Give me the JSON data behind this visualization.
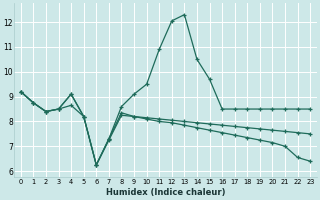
{
  "xlabel": "Humidex (Indice chaleur)",
  "bg_color": "#cde8e8",
  "line_color": "#1e6b5a",
  "grid_color": "#b8d8d8",
  "xlim": [
    -0.5,
    23.5
  ],
  "ylim": [
    5.75,
    12.75
  ],
  "xticks": [
    0,
    1,
    2,
    3,
    4,
    5,
    6,
    7,
    8,
    9,
    10,
    11,
    12,
    13,
    14,
    15,
    16,
    17,
    18,
    19,
    20,
    21,
    22,
    23
  ],
  "yticks": [
    6,
    7,
    8,
    9,
    10,
    11,
    12
  ],
  "line1_x": [
    0,
    1,
    2,
    3,
    4,
    5,
    6,
    7,
    8,
    9,
    10,
    11,
    12,
    13,
    14,
    15,
    16,
    17,
    18,
    19,
    20,
    21,
    22,
    23
  ],
  "line1_y": [
    9.2,
    8.75,
    8.4,
    8.5,
    9.1,
    8.2,
    6.25,
    7.3,
    8.6,
    9.1,
    9.5,
    10.9,
    12.05,
    12.3,
    10.5,
    9.7,
    8.5,
    8.5,
    8.5,
    8.5,
    8.5,
    8.5,
    8.5,
    8.5
  ],
  "line2_x": [
    0,
    1,
    2,
    3,
    4,
    5,
    6,
    7,
    8,
    9,
    10,
    11,
    12,
    13,
    14,
    15,
    16,
    17,
    18,
    19,
    20,
    21,
    22,
    23
  ],
  "line2_y": [
    9.2,
    8.75,
    8.4,
    8.5,
    9.1,
    8.2,
    6.25,
    7.3,
    8.35,
    8.2,
    8.1,
    8.0,
    7.95,
    7.85,
    7.75,
    7.65,
    7.55,
    7.45,
    7.35,
    7.25,
    7.15,
    7.0,
    6.55,
    6.4
  ],
  "line3_x": [
    0,
    1,
    2,
    3,
    4,
    5,
    6,
    7,
    8,
    9,
    10,
    11,
    12,
    13,
    14,
    15,
    16,
    17,
    18,
    19,
    20,
    21,
    22,
    23
  ],
  "line3_y": [
    9.2,
    8.75,
    8.4,
    8.5,
    8.65,
    8.2,
    6.25,
    7.25,
    8.25,
    8.2,
    8.15,
    8.1,
    8.05,
    8.0,
    7.95,
    7.9,
    7.85,
    7.8,
    7.75,
    7.7,
    7.65,
    7.6,
    7.55,
    7.5
  ]
}
